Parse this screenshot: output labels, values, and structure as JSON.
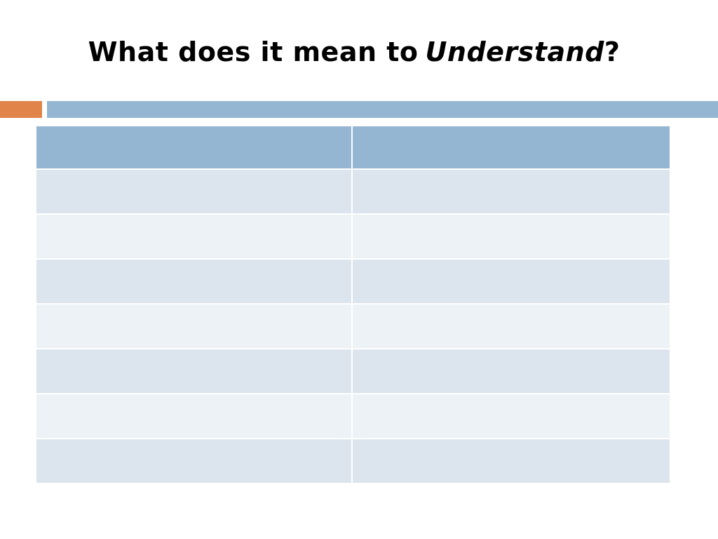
{
  "title": [
    "What does it mean to",
    "Understand",
    "?"
  ]
}
